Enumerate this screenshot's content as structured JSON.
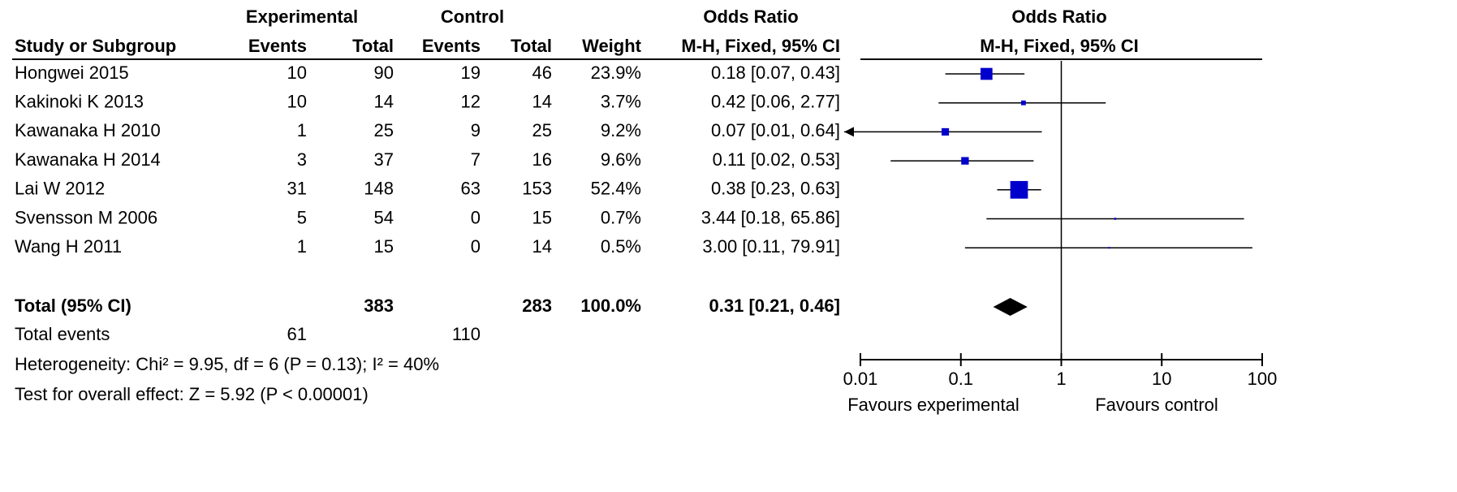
{
  "chart_data": {
    "type": "forest",
    "group_headers": [
      "Experimental",
      "Control",
      "Odds Ratio"
    ],
    "headers": [
      "Study or Subgroup",
      "Events",
      "Total",
      "Events",
      "Total",
      "Weight",
      "M-H, Fixed, 95% CI"
    ],
    "plot_title": "Odds Ratio",
    "plot_subtitle": "M-H, Fixed, 95% CI",
    "color": "#0000cc",
    "xscale": "log",
    "xlim": [
      0.01,
      100
    ],
    "xticks": [
      0.01,
      0.1,
      1,
      10,
      100
    ],
    "favours": [
      "Favours experimental",
      "Favours control"
    ],
    "rows": [
      {
        "study": "Hongwei 2015",
        "exp_events": 10,
        "exp_total": 90,
        "ctrl_events": 19,
        "ctrl_total": 46,
        "weight": 23.9,
        "weight_label": "23.9%",
        "or": 0.18,
        "lower": 0.07,
        "upper": 0.43,
        "ci_label": "0.18 [0.07, 0.43]"
      },
      {
        "study": "Kakinoki K 2013",
        "exp_events": 10,
        "exp_total": 14,
        "ctrl_events": 12,
        "ctrl_total": 14,
        "weight": 3.7,
        "weight_label": "3.7%",
        "or": 0.42,
        "lower": 0.06,
        "upper": 2.77,
        "ci_label": "0.42 [0.06, 2.77]"
      },
      {
        "study": "Kawanaka H 2010",
        "exp_events": 1,
        "exp_total": 25,
        "ctrl_events": 9,
        "ctrl_total": 25,
        "weight": 9.2,
        "weight_label": "9.2%",
        "or": 0.07,
        "lower": 0.01,
        "upper": 0.64,
        "ci_label": "0.07 [0.01, 0.64]"
      },
      {
        "study": "Kawanaka H 2014",
        "exp_events": 3,
        "exp_total": 37,
        "ctrl_events": 7,
        "ctrl_total": 16,
        "weight": 9.6,
        "weight_label": "9.6%",
        "or": 0.11,
        "lower": 0.02,
        "upper": 0.53,
        "ci_label": "0.11 [0.02, 0.53]"
      },
      {
        "study": "Lai W 2012",
        "exp_events": 31,
        "exp_total": 148,
        "ctrl_events": 63,
        "ctrl_total": 153,
        "weight": 52.4,
        "weight_label": "52.4%",
        "or": 0.38,
        "lower": 0.23,
        "upper": 0.63,
        "ci_label": "0.38 [0.23, 0.63]"
      },
      {
        "study": "Svensson M 2006",
        "exp_events": 5,
        "exp_total": 54,
        "ctrl_events": 0,
        "ctrl_total": 15,
        "weight": 0.7,
        "weight_label": "0.7%",
        "or": 3.44,
        "lower": 0.18,
        "upper": 65.86,
        "ci_label": "3.44 [0.18, 65.86]"
      },
      {
        "study": "Wang H 2011",
        "exp_events": 1,
        "exp_total": 15,
        "ctrl_events": 0,
        "ctrl_total": 14,
        "weight": 0.5,
        "weight_label": "0.5%",
        "or": 3.0,
        "lower": 0.11,
        "upper": 79.91,
        "ci_label": "3.00 [0.11, 79.91]"
      }
    ],
    "total": {
      "label": "Total (95% CI)",
      "exp_total": 383,
      "ctrl_total": 283,
      "weight": 100,
      "weight_label": "100.0%",
      "or": 0.31,
      "lower": 0.21,
      "upper": 0.46,
      "ci_label": "0.31 [0.21, 0.46]"
    },
    "total_events": {
      "label": "Total events",
      "exp_events": 61,
      "ctrl_events": 110
    },
    "heterogeneity": "Heterogeneity: Chi² = 9.95, df = 6 (P = 0.13); I² = 40%",
    "overall_effect": "Test for overall effect: Z = 5.92 (P < 0.00001)"
  }
}
